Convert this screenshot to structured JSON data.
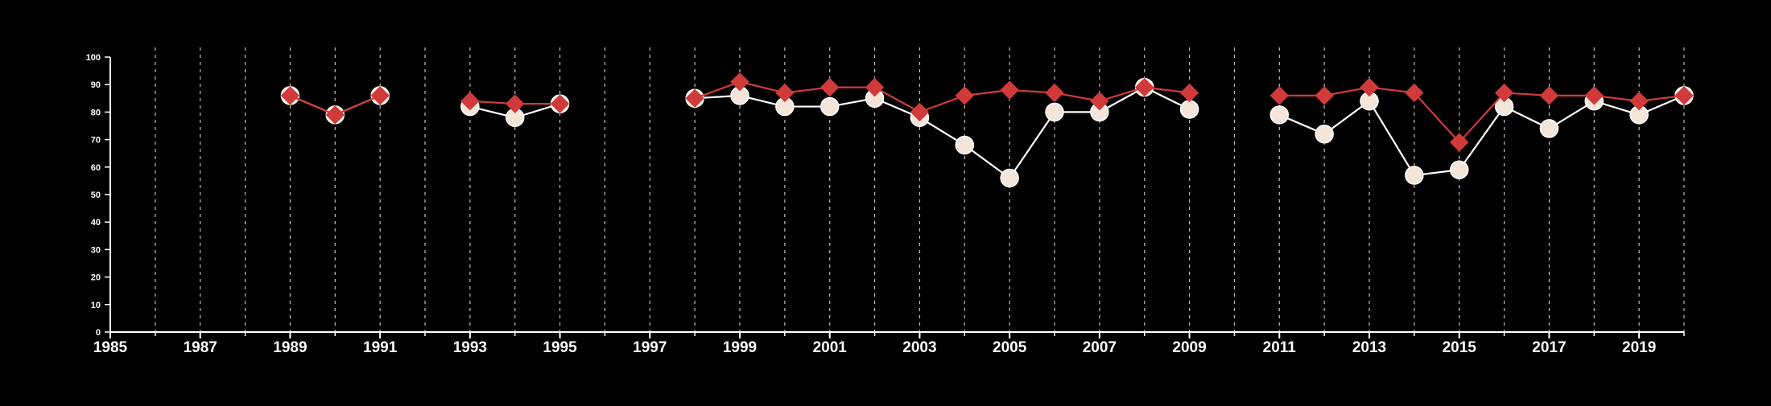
{
  "chart_data": {
    "type": "line",
    "title": "",
    "xlabel": "",
    "ylabel": "",
    "xlim": [
      1985,
      2020
    ],
    "ylim": [
      0,
      100
    ],
    "y_ticks": [
      0,
      10,
      20,
      30,
      40,
      50,
      60,
      70,
      80,
      90,
      100
    ],
    "x_ticks": [
      1985,
      1987,
      1989,
      1991,
      1993,
      1995,
      1997,
      1999,
      2001,
      2003,
      2005,
      2007,
      2009,
      2011,
      2013,
      2015,
      2017,
      2019
    ],
    "grid": "vertical dashed lines at each year",
    "background": "#000000",
    "legend": "none",
    "series": [
      {
        "marker": "circle",
        "color": "#ffffff",
        "marker_fill": "#f3e6d9",
        "segments": [
          [
            [
              1989,
              86
            ],
            [
              1990,
              79
            ],
            [
              1991,
              86
            ]
          ],
          [
            [
              1993,
              82
            ],
            [
              1994,
              78
            ],
            [
              1995,
              83
            ]
          ],
          [
            [
              1998,
              85
            ],
            [
              1999,
              86
            ],
            [
              2000,
              82
            ],
            [
              2001,
              82
            ],
            [
              2002,
              85
            ],
            [
              2003,
              78
            ],
            [
              2004,
              68
            ],
            [
              2005,
              56
            ],
            [
              2006,
              80
            ],
            [
              2007,
              80
            ],
            [
              2008,
              89
            ],
            [
              2009,
              81
            ]
          ],
          [
            [
              2011,
              79
            ],
            [
              2012,
              72
            ],
            [
              2013,
              84
            ],
            [
              2014,
              57
            ],
            [
              2015,
              59
            ],
            [
              2016,
              82
            ],
            [
              2017,
              74
            ],
            [
              2018,
              84
            ],
            [
              2019,
              79
            ],
            [
              2020,
              86
            ]
          ]
        ]
      },
      {
        "marker": "diamond",
        "color": "#d03a3a",
        "segments": [
          [
            [
              1989,
              86
            ],
            [
              1990,
              79
            ],
            [
              1991,
              86
            ]
          ],
          [
            [
              1993,
              84
            ],
            [
              1994,
              83
            ],
            [
              1995,
              83
            ]
          ],
          [
            [
              1998,
              85
            ],
            [
              1999,
              91
            ],
            [
              2000,
              87
            ],
            [
              2001,
              89
            ],
            [
              2002,
              89
            ],
            [
              2003,
              80
            ],
            [
              2004,
              86
            ],
            [
              2005,
              88
            ],
            [
              2006,
              87
            ],
            [
              2007,
              84
            ],
            [
              2008,
              89
            ],
            [
              2009,
              87
            ]
          ],
          [
            [
              2011,
              86
            ],
            [
              2012,
              86
            ],
            [
              2013,
              89
            ],
            [
              2014,
              87
            ],
            [
              2015,
              69
            ],
            [
              2016,
              87
            ],
            [
              2017,
              86
            ],
            [
              2018,
              86
            ],
            [
              2019,
              84
            ],
            [
              2020,
              86
            ]
          ]
        ]
      }
    ]
  }
}
